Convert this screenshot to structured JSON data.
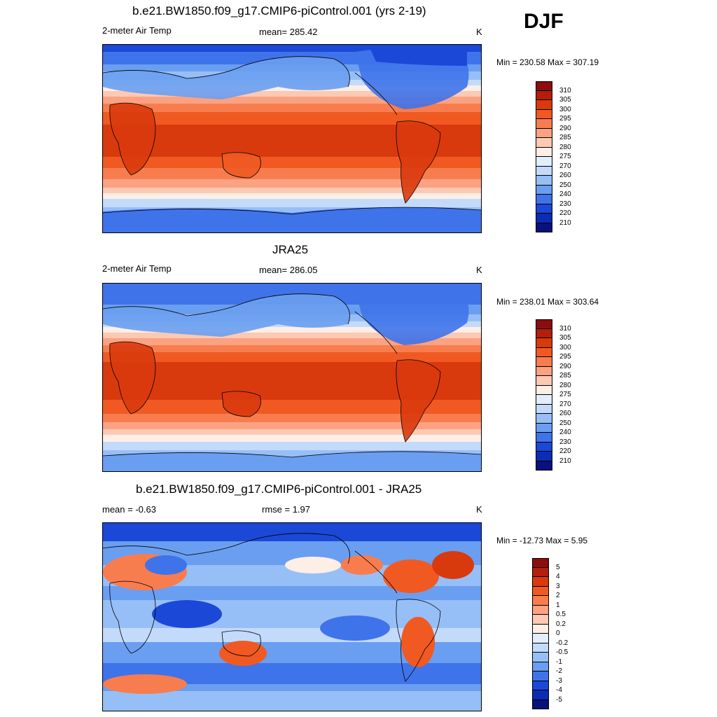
{
  "season": "DJF",
  "panels": [
    {
      "title": "b.e21.BW1850.f09_g17.CMIP6-piControl.001 (yrs 2-19)",
      "left": "2-meter Air Temp",
      "center": "mean= 285.42",
      "right": "K",
      "minmax": "Min = 230.58 Max = 307.19"
    },
    {
      "title": "JRA25",
      "left": "2-meter Air Temp",
      "center": "mean= 286.05",
      "right": "K",
      "minmax": "Min = 238.01 Max = 303.64"
    },
    {
      "title": "b.e21.BW1850.f09_g17.CMIP6-piControl.001 - JRA25",
      "left": "mean =  -0.63",
      "center": "rmse =   1.97",
      "right": "K",
      "minmax": "Min = -12.73 Max =   5.95"
    }
  ],
  "colorbars": {
    "temperature": {
      "labels": [
        "310",
        "305",
        "300",
        "295",
        "290",
        "285",
        "280",
        "275",
        "270",
        "260",
        "250",
        "240",
        "230",
        "220",
        "210"
      ],
      "colors": [
        "#8c0d0d",
        "#b51e0a",
        "#d93a0d",
        "#f05a22",
        "#f87d4e",
        "#fba283",
        "#fcc9b3",
        "#fdeee6",
        "#e2eefb",
        "#c3dafb",
        "#97bff7",
        "#6a9ef0",
        "#3f73ea",
        "#1c48d8",
        "#0c2cb5",
        "#08127a"
      ]
    },
    "difference": {
      "labels": [
        "5",
        "4",
        "3",
        "2",
        "1",
        "0.5",
        "0.2",
        "0",
        "-0.2",
        "-0.5",
        "-1",
        "-2",
        "-3",
        "-4",
        "-5"
      ],
      "colors": [
        "#8c0d0d",
        "#b51e0a",
        "#d93a0d",
        "#f05a22",
        "#f87d4e",
        "#fba283",
        "#fcc9b3",
        "#fdeee6",
        "#e2eefb",
        "#c3dafb",
        "#97bff7",
        "#6a9ef0",
        "#3f73ea",
        "#1c48d8",
        "#0c2cb5",
        "#08127a"
      ]
    }
  }
}
